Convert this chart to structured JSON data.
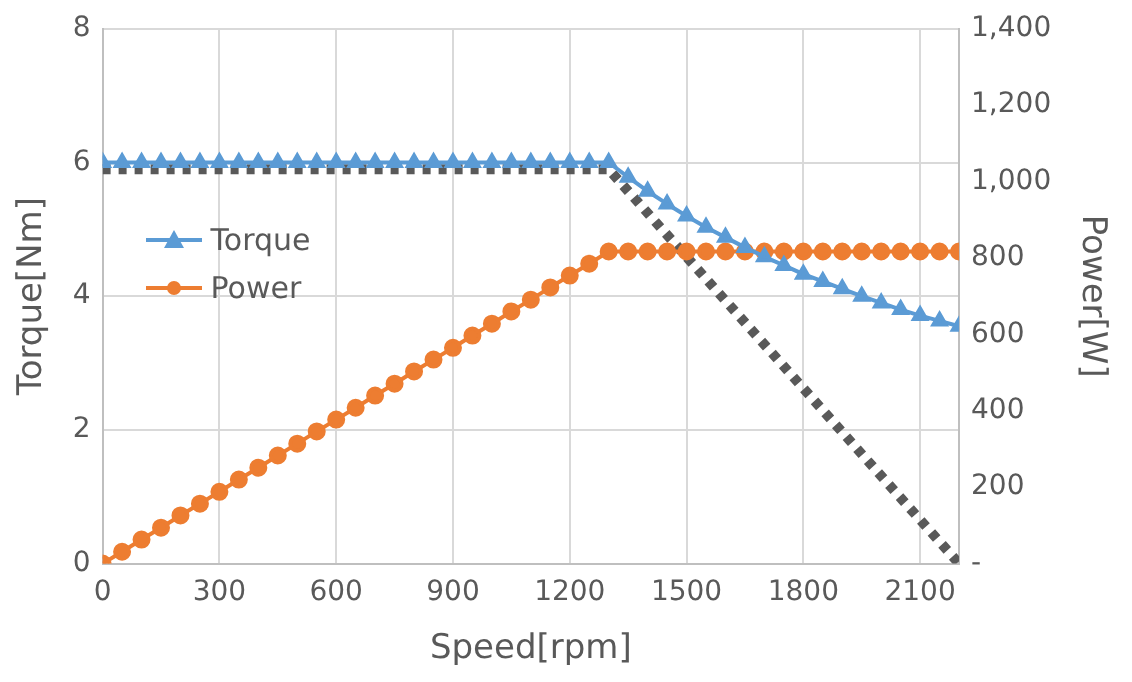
{
  "chart_data": {
    "type": "line",
    "xlabel": "Speed[rpm]",
    "ylabel": "Torque[Nm]",
    "y2label": "Power[W]",
    "x": [
      0,
      50,
      100,
      150,
      200,
      250,
      300,
      350,
      400,
      450,
      500,
      550,
      600,
      650,
      700,
      750,
      800,
      850,
      900,
      950,
      1000,
      1050,
      1100,
      1150,
      1200,
      1250,
      1300,
      1350,
      1400,
      1450,
      1500,
      1550,
      1600,
      1650,
      1700,
      1750,
      1800,
      1850,
      1900,
      1950,
      2000,
      2050,
      2100,
      2150,
      2200
    ],
    "xlim": [
      0,
      2200
    ],
    "xticks": [
      0,
      300,
      600,
      900,
      1200,
      1500,
      1800,
      2100
    ],
    "ylim": [
      0,
      8
    ],
    "yticks": [
      0,
      2,
      4,
      6,
      8
    ],
    "y2lim": [
      0,
      1400
    ],
    "y2ticks": [
      {
        "value": 0,
        "label": "-"
      },
      200,
      400,
      600,
      800,
      {
        "value": 1000,
        "label": "1,000"
      },
      {
        "value": 1200,
        "label": "1,200"
      },
      {
        "value": 1400,
        "label": "1,400"
      }
    ],
    "grid": true,
    "legend": "left",
    "line_style": "solid",
    "series": [
      {
        "name": "Torque",
        "color": "#5b9bd5",
        "marker": "triangle",
        "values": [
          6,
          6,
          6,
          6,
          6,
          6,
          6,
          6,
          6,
          6,
          6,
          6,
          6,
          6,
          6,
          6,
          6,
          6,
          6,
          6,
          6,
          6,
          6,
          6,
          6,
          6,
          6,
          5.78,
          5.57,
          5.38,
          5.2,
          5.03,
          4.88,
          4.73,
          4.59,
          4.46,
          4.33,
          4.22,
          4.11,
          4.0,
          3.9,
          3.8,
          3.71,
          3.63,
          3.55
        ]
      },
      {
        "name": "Power",
        "color": "#ed7d31",
        "marker": "circle",
        "axis": "y2",
        "values": [
          0,
          31,
          63,
          94,
          126,
          157,
          188,
          220,
          251,
          283,
          314,
          346,
          377,
          408,
          440,
          471,
          503,
          534,
          565,
          597,
          628,
          660,
          691,
          723,
          754,
          785,
          817,
          817,
          817,
          817,
          817,
          817,
          817,
          817,
          817,
          817,
          817,
          817,
          817,
          817,
          817,
          817,
          817,
          817,
          817
        ]
      },
      {
        "color": "#595959",
        "marker": "none",
        "line_style": "dotted",
        "x": [
          0,
          1300,
          2200
        ],
        "values": [
          5.9,
          5.9,
          0
        ]
      }
    ]
  }
}
